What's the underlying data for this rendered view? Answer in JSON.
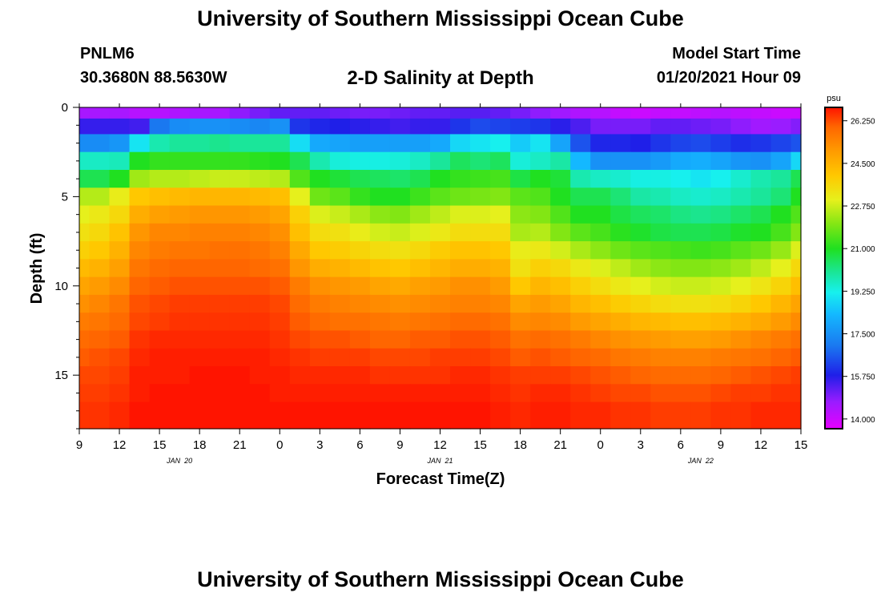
{
  "header": {
    "title": "University of Southern Mississippi Ocean Cube",
    "station_id": "PNLM6",
    "coords": "30.3680N 88.5630W",
    "plot_title": "2-D Salinity at Depth",
    "model_start_label": "Model Start Time",
    "model_start_value": "01/20/2021 Hour 09"
  },
  "footer": {
    "title": "University of Southern Mississippi Ocean Cube"
  },
  "chart_data": {
    "type": "heatmap",
    "title": "2-D Salinity at Depth",
    "xlabel": "Forecast Time(Z)",
    "ylabel": "Depth (ft)",
    "units": "psu",
    "x_hours_range": [
      0,
      54
    ],
    "x_tick_labels": [
      "9",
      "12",
      "15",
      "18",
      "21",
      "0",
      "3",
      "6",
      "9",
      "12",
      "15",
      "18",
      "21",
      "0",
      "3",
      "6",
      "9",
      "12",
      "15"
    ],
    "date_labels": [
      {
        "label": "JAN  20",
        "hour": 7.5
      },
      {
        "label": "JAN  21",
        "hour": 27
      },
      {
        "label": "JAN  22",
        "hour": 46.5
      }
    ],
    "ylim": [
      0,
      18
    ],
    "y_ticks": [
      0,
      5,
      10,
      15
    ],
    "colorbar": {
      "min": 13.6,
      "max": 26.8,
      "tick_values": [
        14.0,
        15.75,
        17.5,
        19.25,
        21.0,
        22.75,
        24.5,
        26.25
      ],
      "tick_labels": [
        "14.000",
        "15.750",
        "17.500",
        "19.250",
        "21.000",
        "22.750",
        "24.500",
        "26.250"
      ],
      "stops": [
        {
          "v": 13.6,
          "c": "#e600ff"
        },
        {
          "v": 14.7,
          "c": "#9a1cff"
        },
        {
          "v": 15.8,
          "c": "#1f1fe8"
        },
        {
          "v": 17.0,
          "c": "#1a78f0"
        },
        {
          "v": 18.3,
          "c": "#14b8ff"
        },
        {
          "v": 19.2,
          "c": "#17f0ee"
        },
        {
          "v": 20.0,
          "c": "#1ae69a"
        },
        {
          "v": 21.0,
          "c": "#20e020"
        },
        {
          "v": 22.0,
          "c": "#82e614"
        },
        {
          "v": 23.0,
          "c": "#e6f01c"
        },
        {
          "v": 24.0,
          "c": "#ffc800"
        },
        {
          "v": 25.0,
          "c": "#ff9b00"
        },
        {
          "v": 26.0,
          "c": "#ff6600"
        },
        {
          "v": 26.8,
          "c": "#ff1400"
        }
      ]
    },
    "depth_levels_ft": [
      0.25,
      1.0,
      2.0,
      3.0,
      4.0,
      5.0,
      6.0,
      7.0,
      8.0,
      9.0,
      10.0,
      11.0,
      12.0,
      13.0,
      14.0,
      15.0,
      16.0,
      17.0
    ],
    "time_hours": [
      0,
      1.5,
      3,
      4.5,
      6,
      7.5,
      9,
      10.5,
      12,
      13.5,
      15,
      16.5,
      18,
      19.5,
      21,
      22.5,
      24,
      25.5,
      27,
      28.5,
      30,
      31.5,
      33,
      34.5,
      36,
      37.5,
      39,
      40.5,
      42,
      43.5,
      45,
      46.5,
      48,
      49.5,
      51,
      52.5,
      54
    ],
    "salinity_psu": [
      [
        14.5,
        14.5,
        14.5,
        14.3,
        14.3,
        14.4,
        14.5,
        14.5,
        14.8,
        15.0,
        15.2,
        15.2,
        15.2,
        15.1,
        15.0,
        15.0,
        15.1,
        15.2,
        15.2,
        15.3,
        15.3,
        15.2,
        15.0,
        14.8,
        14.6,
        14.4,
        14.3,
        14.1,
        14.0,
        14.1,
        14.1,
        14.2,
        14.3,
        14.2,
        14.1,
        14.0,
        14.0
      ],
      [
        15.6,
        15.6,
        15.6,
        15.5,
        17.0,
        17.4,
        17.5,
        17.5,
        17.4,
        17.3,
        17.5,
        16.1,
        15.9,
        15.8,
        15.7,
        15.6,
        15.5,
        15.6,
        15.6,
        16.1,
        16.4,
        16.3,
        16.2,
        16.1,
        15.7,
        15.4,
        15.0,
        15.0,
        15.0,
        15.2,
        15.2,
        15.1,
        15.0,
        14.8,
        14.6,
        14.7,
        14.9
      ],
      [
        17.4,
        17.4,
        17.6,
        19.0,
        19.8,
        20.0,
        20.0,
        20.1,
        20.0,
        20.0,
        20.0,
        18.9,
        18.0,
        17.9,
        17.8,
        17.8,
        17.8,
        17.8,
        18.0,
        18.8,
        19.0,
        19.2,
        18.6,
        19.0,
        17.9,
        16.5,
        15.9,
        15.9,
        15.8,
        16.1,
        16.3,
        16.4,
        16.2,
        16.0,
        16.1,
        16.3,
        16.5
      ],
      [
        19.6,
        19.6,
        19.7,
        21.0,
        21.2,
        21.2,
        21.2,
        21.2,
        21.2,
        21.1,
        21.0,
        20.6,
        19.8,
        19.4,
        19.3,
        19.3,
        19.4,
        19.6,
        20.0,
        20.5,
        20.3,
        20.5,
        19.4,
        19.6,
        19.9,
        18.3,
        17.5,
        17.5,
        17.5,
        17.7,
        18.0,
        18.1,
        17.9,
        17.6,
        17.5,
        17.9,
        18.8
      ],
      [
        20.6,
        20.6,
        21.0,
        22.3,
        22.5,
        22.5,
        22.6,
        22.7,
        22.7,
        22.6,
        22.5,
        21.5,
        21.0,
        20.8,
        20.6,
        20.5,
        20.4,
        20.6,
        21.0,
        21.2,
        21.3,
        21.4,
        20.7,
        21.0,
        20.8,
        19.8,
        19.6,
        19.5,
        19.3,
        19.3,
        19.2,
        19.0,
        19.2,
        19.5,
        19.8,
        20.0,
        20.6
      ],
      [
        22.5,
        22.5,
        23.1,
        24.0,
        24.2,
        24.3,
        24.4,
        24.4,
        24.4,
        24.3,
        24.2,
        23.0,
        21.8,
        21.6,
        21.2,
        21.0,
        21.0,
        21.3,
        21.6,
        21.8,
        21.9,
        22.0,
        21.6,
        21.5,
        21.0,
        20.6,
        20.6,
        20.3,
        19.9,
        19.8,
        19.6,
        19.5,
        19.6,
        19.8,
        20.0,
        20.3,
        21.0
      ],
      [
        23.0,
        23.2,
        23.6,
        24.6,
        24.9,
        25.0,
        25.1,
        25.1,
        25.1,
        25.0,
        24.8,
        23.8,
        22.9,
        22.7,
        22.4,
        22.1,
        22.0,
        22.3,
        22.6,
        22.9,
        22.9,
        23.0,
        22.1,
        22.0,
        21.5,
        21.0,
        21.0,
        20.7,
        20.5,
        20.4,
        20.2,
        20.1,
        20.2,
        20.4,
        20.6,
        21.0,
        21.5
      ],
      [
        23.4,
        23.6,
        24.1,
        25.1,
        25.4,
        25.4,
        25.5,
        25.5,
        25.5,
        25.4,
        25.2,
        24.2,
        23.5,
        23.4,
        23.1,
        22.8,
        22.7,
        22.9,
        23.2,
        23.5,
        23.5,
        23.5,
        22.4,
        22.5,
        22.0,
        21.6,
        21.4,
        21.1,
        20.9,
        20.7,
        20.6,
        20.6,
        20.7,
        20.9,
        21.0,
        21.4,
        22.0
      ],
      [
        23.8,
        24.0,
        24.5,
        25.4,
        25.6,
        25.7,
        25.7,
        25.8,
        25.8,
        25.7,
        25.5,
        24.7,
        24.0,
        23.9,
        23.7,
        23.5,
        23.4,
        23.6,
        23.9,
        24.1,
        24.1,
        24.0,
        23.1,
        23.2,
        22.8,
        22.4,
        22.1,
        21.8,
        21.6,
        21.5,
        21.4,
        21.3,
        21.4,
        21.6,
        21.8,
        22.2,
        22.9
      ],
      [
        24.3,
        24.5,
        24.9,
        25.7,
        25.9,
        26.0,
        26.0,
        26.0,
        26.0,
        25.9,
        25.8,
        25.1,
        24.6,
        24.5,
        24.3,
        24.1,
        24.0,
        24.2,
        24.4,
        24.6,
        24.6,
        24.5,
        23.4,
        23.8,
        23.6,
        23.2,
        22.9,
        22.6,
        22.3,
        22.1,
        22.0,
        22.0,
        22.1,
        22.3,
        22.6,
        23.0,
        23.6
      ],
      [
        24.8,
        25.0,
        25.3,
        26.0,
        26.1,
        26.2,
        26.2,
        26.2,
        26.2,
        26.2,
        26.1,
        25.6,
        25.2,
        25.1,
        25.0,
        24.8,
        24.7,
        24.9,
        25.0,
        25.2,
        25.2,
        25.0,
        24.0,
        24.4,
        24.2,
        23.8,
        23.5,
        23.2,
        23.0,
        22.8,
        22.7,
        22.7,
        22.8,
        23.0,
        23.3,
        23.7,
        24.2
      ],
      [
        25.2,
        25.4,
        25.7,
        26.2,
        26.3,
        26.4,
        26.4,
        26.4,
        26.4,
        26.4,
        26.3,
        25.9,
        25.6,
        25.5,
        25.4,
        25.3,
        25.2,
        25.3,
        25.4,
        25.5,
        25.5,
        25.4,
        24.8,
        25.0,
        24.8,
        24.4,
        24.2,
        23.9,
        23.7,
        23.5,
        23.4,
        23.4,
        23.5,
        23.7,
        24.0,
        24.4,
        24.8
      ],
      [
        25.6,
        25.7,
        25.9,
        26.3,
        26.4,
        26.5,
        26.5,
        26.5,
        26.5,
        26.5,
        26.4,
        26.1,
        25.9,
        25.8,
        25.8,
        25.7,
        25.6,
        25.7,
        25.8,
        25.9,
        25.9,
        25.8,
        25.3,
        25.4,
        25.3,
        25.0,
        24.8,
        24.6,
        24.4,
        24.3,
        24.2,
        24.2,
        24.3,
        24.5,
        24.7,
        25.0,
        25.3
      ],
      [
        25.9,
        26.0,
        26.1,
        26.5,
        26.6,
        26.6,
        26.6,
        26.6,
        26.6,
        26.6,
        26.5,
        26.3,
        26.2,
        26.2,
        26.1,
        26.0,
        26.0,
        26.1,
        26.1,
        26.2,
        26.2,
        26.1,
        25.8,
        25.9,
        25.8,
        25.6,
        25.4,
        25.2,
        25.1,
        25.0,
        24.9,
        24.9,
        25.0,
        25.2,
        25.4,
        25.6,
        25.8
      ],
      [
        26.1,
        26.2,
        26.3,
        26.6,
        26.7,
        26.7,
        26.7,
        26.7,
        26.7,
        26.7,
        26.6,
        26.5,
        26.4,
        26.4,
        26.4,
        26.3,
        26.3,
        26.3,
        26.4,
        26.4,
        26.4,
        26.3,
        26.1,
        26.2,
        26.1,
        26.0,
        25.9,
        25.7,
        25.6,
        25.5,
        25.5,
        25.5,
        25.6,
        25.7,
        25.8,
        26.0,
        26.1
      ],
      [
        26.3,
        26.3,
        26.4,
        26.7,
        26.7,
        26.7,
        26.8,
        26.8,
        26.8,
        26.7,
        26.7,
        26.6,
        26.6,
        26.6,
        26.6,
        26.5,
        26.5,
        26.5,
        26.5,
        26.6,
        26.6,
        26.5,
        26.4,
        26.4,
        26.4,
        26.3,
        26.2,
        26.1,
        26.0,
        25.9,
        25.9,
        25.9,
        26.0,
        26.1,
        26.2,
        26.3,
        26.4
      ],
      [
        26.4,
        26.4,
        26.5,
        26.7,
        26.8,
        26.8,
        26.8,
        26.8,
        26.8,
        26.8,
        26.7,
        26.7,
        26.7,
        26.7,
        26.7,
        26.7,
        26.7,
        26.7,
        26.7,
        26.7,
        26.7,
        26.6,
        26.5,
        26.6,
        26.6,
        26.5,
        26.4,
        26.3,
        26.3,
        26.2,
        26.2,
        26.2,
        26.3,
        26.4,
        26.4,
        26.5,
        26.5
      ],
      [
        26.5,
        26.5,
        26.6,
        26.8,
        26.8,
        26.8,
        26.8,
        26.8,
        26.8,
        26.8,
        26.8,
        26.8,
        26.8,
        26.8,
        26.8,
        26.8,
        26.8,
        26.8,
        26.8,
        26.8,
        26.8,
        26.7,
        26.6,
        26.7,
        26.7,
        26.6,
        26.6,
        26.5,
        26.5,
        26.4,
        26.4,
        26.4,
        26.5,
        26.5,
        26.6,
        26.6,
        26.6
      ]
    ]
  }
}
